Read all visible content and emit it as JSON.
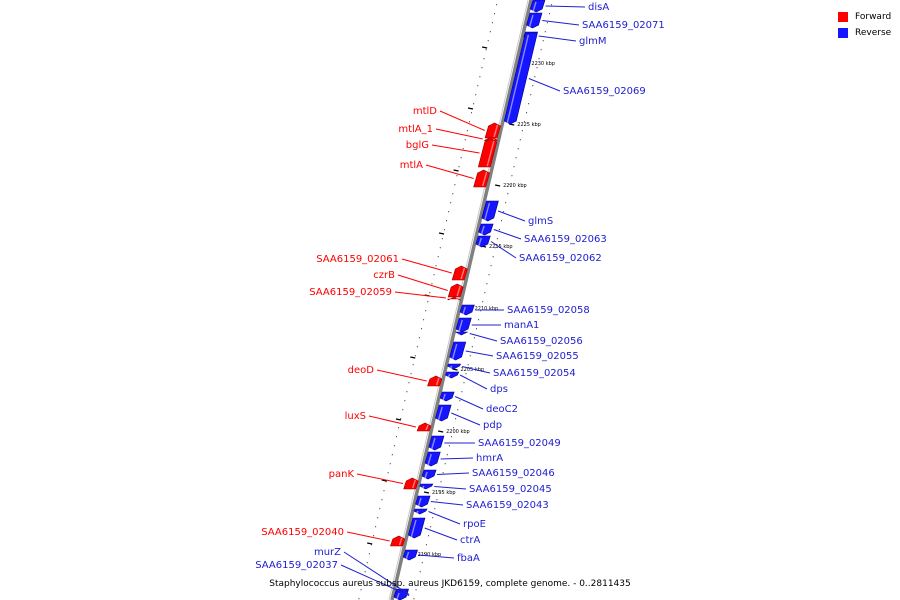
{
  "legend": {
    "forward": {
      "label": "Forward",
      "color": "#ff0000"
    },
    "reverse": {
      "label": "Reverse",
      "color": "#1515ff"
    }
  },
  "caption": "Staphylococcus aureus subsp. aureus JKD6159, complete genome. - 0..2811435",
  "scale_labels": [
    "2230 kbp",
    "2225 kbp",
    "2220 kbp",
    "2215 kbp",
    "2210 kbp",
    "2205 kbp",
    "2200 kbp",
    "2195 kbp",
    "2190 kbp"
  ],
  "genes": [
    {
      "name": "disA",
      "strand": "reverse"
    },
    {
      "name": "SAA6159_02071",
      "strand": "reverse"
    },
    {
      "name": "glmM",
      "strand": "reverse"
    },
    {
      "name": "SAA6159_02069",
      "strand": "reverse"
    },
    {
      "name": "mtlD",
      "strand": "forward"
    },
    {
      "name": "mtlA_1",
      "strand": "forward"
    },
    {
      "name": "bglG",
      "strand": "forward"
    },
    {
      "name": "mtlA",
      "strand": "forward"
    },
    {
      "name": "glmS",
      "strand": "reverse"
    },
    {
      "name": "SAA6159_02063",
      "strand": "reverse"
    },
    {
      "name": "SAA6159_02062",
      "strand": "reverse"
    },
    {
      "name": "SAA6159_02061",
      "strand": "forward"
    },
    {
      "name": "czrB",
      "strand": "forward"
    },
    {
      "name": "SAA6159_02059",
      "strand": "forward"
    },
    {
      "name": "SAA6159_02058",
      "strand": "reverse"
    },
    {
      "name": "manA1",
      "strand": "reverse"
    },
    {
      "name": "SAA6159_02056",
      "strand": "reverse"
    },
    {
      "name": "SAA6159_02055",
      "strand": "reverse"
    },
    {
      "name": "deoD",
      "strand": "forward"
    },
    {
      "name": "SAA6159_02054",
      "strand": "reverse"
    },
    {
      "name": "dps",
      "strand": "reverse"
    },
    {
      "name": "deoC2",
      "strand": "reverse"
    },
    {
      "name": "luxS",
      "strand": "forward"
    },
    {
      "name": "pdp",
      "strand": "reverse"
    },
    {
      "name": "SAA6159_02049",
      "strand": "reverse"
    },
    {
      "name": "hmrA",
      "strand": "reverse"
    },
    {
      "name": "panK",
      "strand": "forward"
    },
    {
      "name": "SAA6159_02046",
      "strand": "reverse"
    },
    {
      "name": "SAA6159_02045",
      "strand": "reverse"
    },
    {
      "name": "SAA6159_02043",
      "strand": "reverse"
    },
    {
      "name": "rpoE",
      "strand": "reverse"
    },
    {
      "name": "SAA6159_02040",
      "strand": "forward"
    },
    {
      "name": "ctrA",
      "strand": "reverse"
    },
    {
      "name": "murZ",
      "strand": "reverse"
    },
    {
      "name": "fbaA",
      "strand": "reverse"
    },
    {
      "name": "SAA6159_02037",
      "strand": "reverse"
    }
  ]
}
